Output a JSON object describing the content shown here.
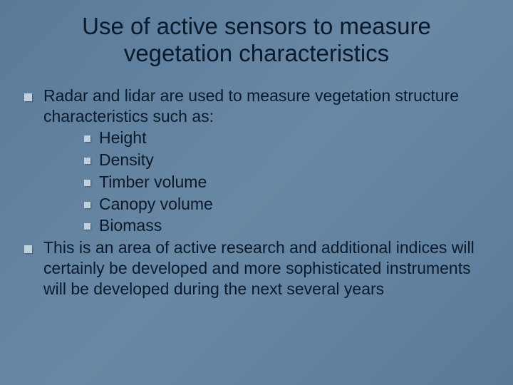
{
  "background_gradient": [
    "#5a7a9a",
    "#6888a5",
    "#5a7a9a"
  ],
  "bullet_marker_color": "#c0d0dd",
  "text_color": "#0a1a2a",
  "title_fontsize": 33,
  "body_fontsize": 23,
  "font_family": "Verdana, Tahoma, Geneva, sans-serif",
  "slide": {
    "title": "Use of active sensors to measure vegetation characteristics",
    "bullets": [
      {
        "text": "Radar and lidar are used to measure vegetation structure characteristics such as:",
        "children": [
          {
            "text": "Height"
          },
          {
            "text": "Density"
          },
          {
            "text": "Timber volume"
          },
          {
            "text": "Canopy volume"
          },
          {
            "text": "Biomass"
          }
        ]
      },
      {
        "text": "This is an area of active research and additional indices will certainly be developed and more sophisticated instruments will be developed during the next several years",
        "children": []
      }
    ]
  }
}
